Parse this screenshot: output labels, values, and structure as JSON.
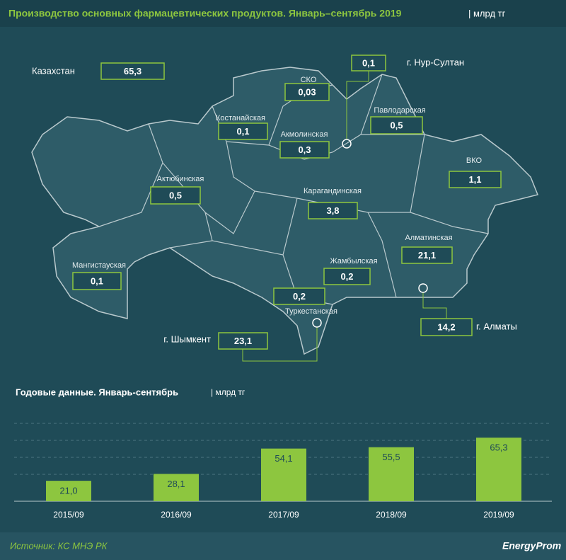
{
  "header": {
    "title": "Производство основных фармацевтических продуктов. Январь–сентябрь 2019",
    "unit": "| млрд тг"
  },
  "map": {
    "total": {
      "name": "Казахстан",
      "value": "65,3"
    },
    "regions": [
      {
        "name": "г. Нур-Султан",
        "value": "0,1"
      },
      {
        "name": "СКО",
        "value": "0,03"
      },
      {
        "name": "Костанайская",
        "value": "0,1"
      },
      {
        "name": "Акмолинская",
        "value": "0,3"
      },
      {
        "name": "Павлодарская",
        "value": "0,5"
      },
      {
        "name": "ВКО",
        "value": "1,1"
      },
      {
        "name": "Актюбинская",
        "value": "0,5"
      },
      {
        "name": "Карагандинская",
        "value": "3,8"
      },
      {
        "name": "Алматинская",
        "value": "21,1"
      },
      {
        "name": "Мангистауская",
        "value": "0,1"
      },
      {
        "name": "Жамбылская",
        "value": "0,2"
      },
      {
        "name": "Туркестанская",
        "value": "0,2"
      },
      {
        "name": "г. Алматы",
        "value": "14,2"
      },
      {
        "name": "г. Шымкент",
        "value": "23,1"
      }
    ]
  },
  "chart_data": {
    "type": "bar",
    "title": "Годовые данные. Январь-сентябрь",
    "unit": "| млрд тг",
    "categories": [
      "2015/09",
      "2016/09",
      "2017/09",
      "2018/09",
      "2019/09"
    ],
    "values": [
      21.0,
      28.1,
      54.1,
      55.5,
      65.3
    ],
    "value_labels": [
      "21,0",
      "28,1",
      "54,1",
      "55,5",
      "65,3"
    ],
    "color": "#8dc63f",
    "ylim": [
      0,
      80
    ]
  },
  "footer": {
    "source": "Источник: КС МНЭ РК",
    "logo": "EnergyProm"
  }
}
